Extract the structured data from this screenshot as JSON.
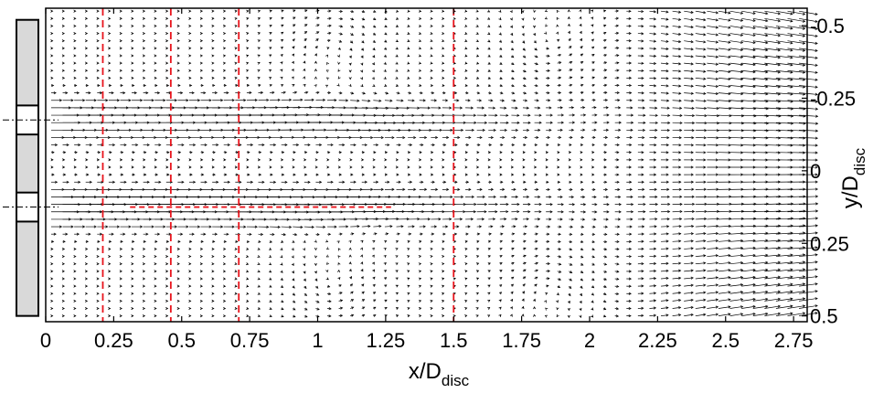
{
  "chart_data": {
    "type": "quiver",
    "xlabel": {
      "main": "x/D",
      "sub": "disc"
    },
    "ylabel": {
      "main": "y/D",
      "sub": "disc"
    },
    "xlim": [
      0,
      2.8
    ],
    "ylim": [
      0.52,
      -0.56
    ],
    "y_axis_side": "right",
    "grid": false,
    "x_ticks": [
      {
        "value": 0,
        "label": "0"
      },
      {
        "value": 0.25,
        "label": "0.25"
      },
      {
        "value": 0.5,
        "label": "0.5"
      },
      {
        "value": 0.75,
        "label": "0.75"
      },
      {
        "value": 1,
        "label": "1"
      },
      {
        "value": 1.25,
        "label": "1.25"
      },
      {
        "value": 1.5,
        "label": "1.5"
      },
      {
        "value": 1.75,
        "label": "1.75"
      },
      {
        "value": 2,
        "label": "2"
      },
      {
        "value": 2.25,
        "label": "2.25"
      },
      {
        "value": 2.5,
        "label": "2.5"
      },
      {
        "value": 2.75,
        "label": "2.75"
      }
    ],
    "y_ticks": [
      {
        "value": -0.5,
        "label": "-0.5"
      },
      {
        "value": -0.25,
        "label": "-0.25"
      },
      {
        "value": 0,
        "label": "0"
      },
      {
        "value": 0.25,
        "label": "0.25"
      },
      {
        "value": 0.5,
        "label": "0.5"
      }
    ],
    "reference_lines": {
      "color": "#e8141c",
      "vertical_x": [
        0.21,
        0.46,
        0.71,
        1.5
      ],
      "horizontal": {
        "y": 0.125,
        "x_from": 0.31,
        "x_to": 1.27
      }
    },
    "device_schematic": {
      "fill": "#d9d9d9",
      "y_range": [
        -0.52,
        0.5
      ],
      "openings": [
        {
          "y_from": -0.225,
          "y_to": -0.125,
          "center": -0.175
        },
        {
          "y_from": 0.075,
          "y_to": 0.175,
          "center": 0.125
        }
      ]
    },
    "vector_field": {
      "x_range": [
        0.02,
        2.77
      ],
      "y_range": [
        -0.55,
        0.5
      ],
      "columns": 66,
      "rows": 42,
      "color": "#000000"
    }
  }
}
